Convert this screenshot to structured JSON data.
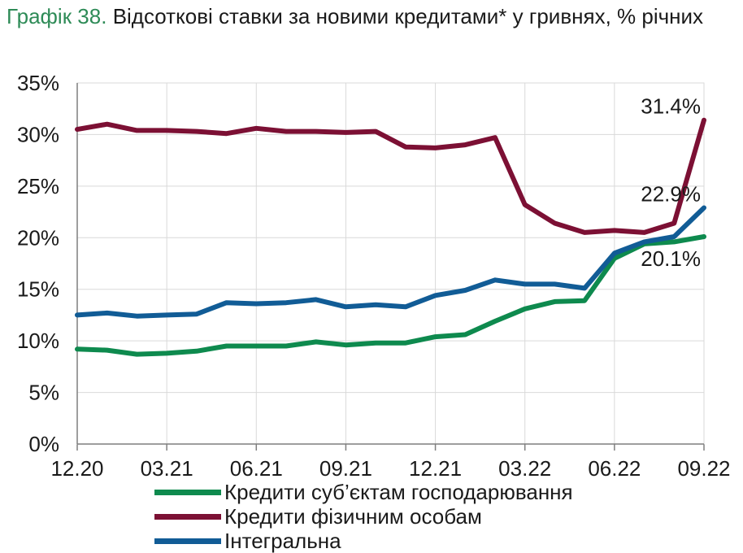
{
  "title": {
    "prefix": "Графік 38.",
    "text": "Відсоткові ставки за новими кредитами* у гривнях, % річних"
  },
  "colors": {
    "business": "#0e8a4e",
    "individuals": "#7c1034",
    "integral": "#115c96",
    "axis": "#7f7f7f",
    "grid": "#d9d9d9"
  },
  "chart_data": {
    "type": "line",
    "x": [
      "12.20",
      "01.21",
      "02.21",
      "03.21",
      "04.21",
      "05.21",
      "06.21",
      "07.21",
      "08.21",
      "09.21",
      "10.21",
      "11.21",
      "12.21",
      "01.22",
      "02.22",
      "03.22",
      "04.22",
      "05.22",
      "06.22",
      "07.22",
      "08.22",
      "09.22"
    ],
    "x_tick_labels": [
      "12.20",
      "03.21",
      "06.21",
      "09.21",
      "12.21",
      "03.22",
      "06.22",
      "09.22"
    ],
    "y_tick_labels": [
      "0%",
      "5%",
      "10%",
      "15%",
      "20%",
      "25%",
      "30%",
      "35%"
    ],
    "ylim": [
      0,
      35
    ],
    "grid": true,
    "legend_position": "bottom",
    "series": [
      {
        "key": "business",
        "name": "Кредити суб’єктам господарювання",
        "values": [
          9.2,
          9.1,
          8.7,
          8.8,
          9.0,
          9.5,
          9.5,
          9.5,
          9.9,
          9.6,
          9.8,
          9.8,
          10.4,
          10.6,
          11.9,
          13.1,
          13.8,
          13.9,
          18.0,
          19.4,
          19.6,
          20.1
        ]
      },
      {
        "key": "individuals",
        "name": "Кредити фізичним особам",
        "values": [
          30.5,
          31.0,
          30.4,
          30.4,
          30.3,
          30.1,
          30.6,
          30.3,
          30.3,
          30.2,
          30.3,
          28.8,
          28.7,
          29.0,
          29.7,
          23.2,
          21.4,
          20.5,
          20.7,
          20.5,
          21.4,
          31.4
        ]
      },
      {
        "key": "integral",
        "name": "Інтегральна",
        "values": [
          12.5,
          12.7,
          12.4,
          12.5,
          12.6,
          13.7,
          13.6,
          13.7,
          14.0,
          13.3,
          13.5,
          13.3,
          14.4,
          14.9,
          15.9,
          15.5,
          15.5,
          15.1,
          18.5,
          19.6,
          20.1,
          22.9
        ]
      }
    ],
    "annotations": [
      {
        "text": "31.4%",
        "series": "individuals"
      },
      {
        "text": "22.9%",
        "series": "integral"
      },
      {
        "text": "20.1%",
        "series": "business"
      }
    ]
  }
}
